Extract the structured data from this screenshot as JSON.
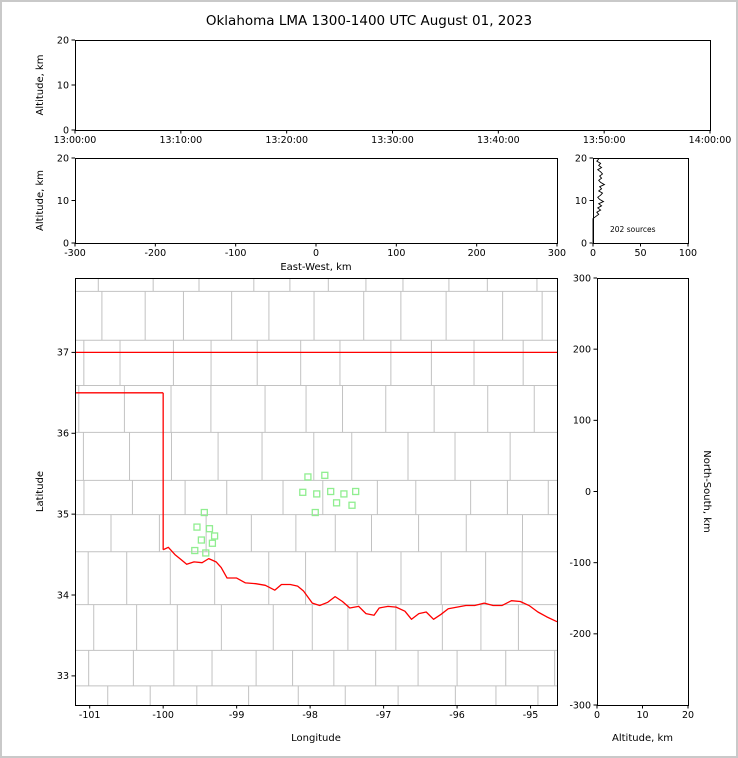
{
  "title": "Oklahoma LMA 1300-1400 UTC August 01, 2023",
  "colors": {
    "axis": "#000000",
    "county_lines": "#c2c2c2",
    "state_border": "#ff0000",
    "station_marker": "#90ee90",
    "histogram": "#000000",
    "background": "#ffffff",
    "window_frame": "#c9c9c9"
  },
  "chart_data": [
    {
      "id": "time_height",
      "type": "scatter",
      "xlabel": "",
      "ylabel": "Altitude, km",
      "xlim": [
        0,
        6
      ],
      "xticks": [
        0,
        1,
        2,
        3,
        4,
        5,
        6
      ],
      "xtick_labels": [
        "13:00:00",
        "13:10:00",
        "13:20:00",
        "13:30:00",
        "13:40:00",
        "13:50:00",
        "14:00:00"
      ],
      "ylim": [
        0,
        20
      ],
      "yticks": [
        0,
        10,
        20
      ],
      "points": []
    },
    {
      "id": "ew_height",
      "type": "scatter",
      "xlabel": "East-West, km",
      "ylabel": "Altitude, km",
      "xlim": [
        -300,
        300
      ],
      "xticks": [
        -300,
        -200,
        -100,
        0,
        100,
        200,
        300
      ],
      "ylim": [
        0,
        20
      ],
      "yticks": [
        0,
        10,
        20
      ],
      "points": []
    },
    {
      "id": "alt_histogram",
      "type": "line",
      "xlabel": "",
      "ylabel": "",
      "xlim": [
        0,
        100
      ],
      "xticks": [
        0,
        50,
        100
      ],
      "ylim": [
        0,
        20
      ],
      "yticks": [
        0,
        10,
        20
      ],
      "annotation": "202 sources",
      "bin_km": 0.5,
      "counts": [
        0,
        0,
        0,
        0,
        0,
        0,
        0,
        0,
        0,
        0,
        0,
        0,
        3,
        6,
        4,
        8,
        5,
        9,
        6,
        11,
        7,
        5,
        8,
        10,
        6,
        9,
        7,
        12,
        8,
        6,
        9,
        7,
        10,
        8,
        5,
        9,
        6,
        8,
        4,
        6
      ]
    },
    {
      "id": "plan_view",
      "type": "scatter",
      "xlabel": "Longitude",
      "ylabel": "Latitude",
      "xlim": [
        -101.2,
        -94.64
      ],
      "xticks": [
        -101,
        -100,
        -99,
        -98,
        -97,
        -96,
        -95
      ],
      "ylim": [
        32.64,
        37.92
      ],
      "yticks": [
        33,
        34,
        35,
        36,
        37
      ],
      "stations": [
        [
          -99.44,
          35.02
        ],
        [
          -99.54,
          34.84
        ],
        [
          -99.37,
          34.82
        ],
        [
          -99.48,
          34.68
        ],
        [
          -99.33,
          34.64
        ],
        [
          -99.42,
          34.52
        ],
        [
          -99.57,
          34.55
        ],
        [
          -99.3,
          34.73
        ],
        [
          -98.03,
          35.46
        ],
        [
          -97.8,
          35.48
        ],
        [
          -98.1,
          35.27
        ],
        [
          -97.91,
          35.25
        ],
        [
          -97.72,
          35.28
        ],
        [
          -97.54,
          35.25
        ],
        [
          -97.38,
          35.28
        ],
        [
          -97.43,
          35.11
        ],
        [
          -97.64,
          35.14
        ],
        [
          -97.93,
          35.02
        ]
      ],
      "state_border": [
        [
          [
            -101.2,
            37.0
          ],
          [
            -94.64,
            37.0
          ]
        ],
        [
          [
            -101.2,
            36.5
          ],
          [
            -100.0,
            36.5
          ]
        ],
        [
          [
            -100.0,
            36.5
          ],
          [
            -100.0,
            34.56
          ]
        ]
      ],
      "red_river": [
        [
          -100.0,
          34.56
        ],
        [
          -99.93,
          34.59
        ],
        [
          -99.84,
          34.5
        ],
        [
          -99.76,
          34.44
        ],
        [
          -99.68,
          34.38
        ],
        [
          -99.58,
          34.41
        ],
        [
          -99.47,
          34.4
        ],
        [
          -99.38,
          34.45
        ],
        [
          -99.28,
          34.41
        ],
        [
          -99.21,
          34.34
        ],
        [
          -99.13,
          34.21
        ],
        [
          -99.0,
          34.21
        ],
        [
          -98.88,
          34.15
        ],
        [
          -98.74,
          34.14
        ],
        [
          -98.61,
          34.12
        ],
        [
          -98.48,
          34.06
        ],
        [
          -98.39,
          34.13
        ],
        [
          -98.27,
          34.13
        ],
        [
          -98.17,
          34.11
        ],
        [
          -98.09,
          34.05
        ],
        [
          -97.97,
          33.9
        ],
        [
          -97.87,
          33.87
        ],
        [
          -97.76,
          33.91
        ],
        [
          -97.66,
          33.98
        ],
        [
          -97.56,
          33.92
        ],
        [
          -97.46,
          33.84
        ],
        [
          -97.34,
          33.86
        ],
        [
          -97.24,
          33.77
        ],
        [
          -97.13,
          33.75
        ],
        [
          -97.06,
          33.84
        ],
        [
          -96.94,
          33.86
        ],
        [
          -96.83,
          33.85
        ],
        [
          -96.71,
          33.8
        ],
        [
          -96.62,
          33.7
        ],
        [
          -96.52,
          33.77
        ],
        [
          -96.42,
          33.79
        ],
        [
          -96.32,
          33.7
        ],
        [
          -96.22,
          33.76
        ],
        [
          -96.12,
          33.83
        ],
        [
          -96.0,
          33.85
        ],
        [
          -95.88,
          33.87
        ],
        [
          -95.76,
          33.87
        ],
        [
          -95.63,
          33.9
        ],
        [
          -95.51,
          33.87
        ],
        [
          -95.39,
          33.87
        ],
        [
          -95.26,
          33.93
        ],
        [
          -95.14,
          33.92
        ],
        [
          -95.02,
          33.87
        ],
        [
          -94.9,
          33.79
        ],
        [
          -94.78,
          33.73
        ],
        [
          -94.64,
          33.67
        ]
      ],
      "county_grid": {
        "seed": 12,
        "lat_step": 0.42,
        "lon_step": 0.48
      }
    },
    {
      "id": "ns_height",
      "type": "scatter",
      "xlabel": "Altitude, km",
      "ylabel": "North-South, km",
      "ylabel_side": "right",
      "xlim": [
        0,
        20
      ],
      "xticks": [
        0,
        10,
        20
      ],
      "ylim": [
        -300,
        300
      ],
      "yticks": [
        -300,
        -200,
        -100,
        0,
        100,
        200,
        300
      ],
      "points": []
    }
  ]
}
